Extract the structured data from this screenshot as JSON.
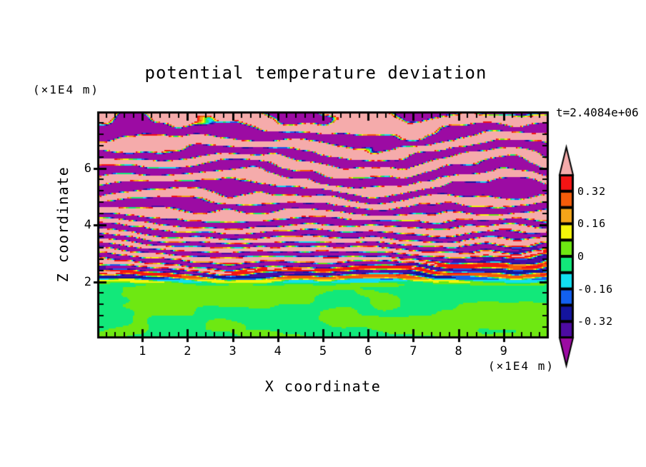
{
  "chart_data": {
    "type": "heatmap",
    "title": "potential temperature deviation",
    "time_annotation": "t=2.4084e+06",
    "xlabel": "X coordinate",
    "x_units": "(×1E4 m)",
    "ylabel": "Z coordinate",
    "y_units": "(×1E4 m)",
    "x_range": [
      0,
      10
    ],
    "z_range": [
      0,
      8
    ],
    "x_major_ticks": [
      1,
      2,
      3,
      4,
      5,
      6,
      7,
      8,
      9
    ],
    "x_minor_step": 0.2,
    "z_major_ticks": [
      2,
      4,
      6
    ],
    "z_minor_step": 0.4,
    "contour_levels": [
      -0.4,
      -0.32,
      -0.24,
      -0.16,
      -0.08,
      0,
      0.08,
      0.16,
      0.24,
      0.32,
      0.4
    ],
    "background": "#ffffff",
    "axis_color": "#000000",
    "colorbar": {
      "labels": [
        "0.32",
        "0.16",
        "0",
        "-0.16",
        "-0.32"
      ],
      "label_values": [
        0.32,
        0.16,
        0,
        -0.16,
        -0.32
      ],
      "segment_colors_top_to_bottom": [
        "#f51414",
        "#f55c0a",
        "#f5a519",
        "#f5f50a",
        "#6ee812",
        "#12e87a",
        "#12dff0",
        "#1260f0",
        "#14149e",
        "#4d0ba3"
      ],
      "over_arrow_color": "#f5abab",
      "under_arrow_color": "#9c0ba3",
      "outline_color": "#000000"
    },
    "field": {
      "description": "Stratified gravity-wave field: saturated pink (>0.4) and dark-purple (<-0.4) horizontal bands aloft with thin rainbow transitions, fine multicolour striations between z=2 and z=5, and weak (+/-0.08) green convective blobs below z=2.",
      "seed": 7,
      "amplitude_profile": [
        [
          0,
          0.03
        ],
        [
          1.7,
          0.04
        ],
        [
          2.15,
          0.32
        ],
        [
          3,
          0.45
        ],
        [
          4.4,
          0.6
        ],
        [
          5.4,
          0.85
        ],
        [
          8,
          0.9
        ]
      ],
      "vertical_frequency": [
        3.9,
        0.2
      ],
      "tilt": 0.05,
      "waviness": 0.55,
      "bottom_blend": [
        1.75,
        2.3
      ],
      "bottom_amplitude": 0.07
    }
  }
}
